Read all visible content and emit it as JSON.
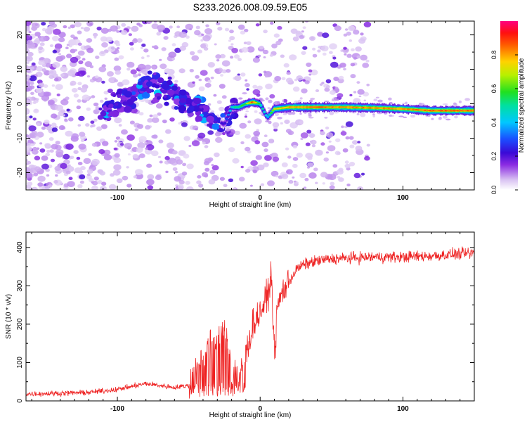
{
  "figure_title": "S233.2026.008.09.59.E05",
  "colorbar": {
    "label": "Normalized spectral amplitude",
    "ticks": [
      "0.0",
      "0.2",
      "0.4",
      "0.6",
      "0.8"
    ]
  },
  "chart_data": [
    {
      "type": "heatmap",
      "title": "S233.2026.008.09.59.E05",
      "xlabel": "Height of straight line (km)",
      "ylabel": "Frequency (Hz)",
      "xlim": [
        -164,
        150
      ],
      "ylim": [
        -25,
        24
      ],
      "xticks": [
        -100,
        0,
        100
      ],
      "yticks": [
        -20,
        -10,
        0,
        10,
        20
      ],
      "colorbar_range": [
        0,
        1
      ],
      "ridge": {
        "description": "Doppler line of the signal",
        "x": [
          -110,
          -95,
          -85,
          -75,
          -60,
          -50,
          -40,
          -30,
          -25,
          -20,
          -15,
          -10,
          -5,
          0,
          5,
          10,
          20,
          40,
          60,
          80,
          100,
          120,
          150
        ],
        "freq": [
          -3,
          1,
          4,
          6,
          3,
          0,
          -2,
          -5,
          -6,
          -1,
          -1,
          0,
          0.5,
          0,
          -4,
          -1.5,
          -1,
          -1,
          -1,
          -1.2,
          -1.5,
          -2,
          -2
        ],
        "intensity": [
          0.15,
          0.2,
          0.2,
          0.18,
          0.2,
          0.18,
          0.18,
          0.2,
          0.25,
          0.45,
          0.55,
          0.6,
          0.9,
          0.5,
          0.4,
          0.7,
          0.8,
          0.85,
          0.8,
          0.82,
          0.8,
          0.85,
          0.85
        ]
      }
    },
    {
      "type": "line",
      "xlabel": "Height of straight line (km)",
      "ylabel": "SNR (10 * v/v)",
      "xlim": [
        -164,
        150
      ],
      "ylim": [
        0,
        440
      ],
      "xticks": [
        -100,
        0,
        100
      ],
      "yticks": [
        0,
        100,
        200,
        300,
        400
      ],
      "series": [
        {
          "name": "SNR",
          "color": "#ee2222",
          "x": [
            -164,
            -140,
            -120,
            -100,
            -80,
            -60,
            -50,
            -45,
            -40,
            -35,
            -30,
            -25,
            -20,
            -15,
            -10,
            -5,
            0,
            5,
            8,
            10,
            12,
            15,
            20,
            25,
            30,
            40,
            50,
            60,
            80,
            100,
            120,
            135,
            150
          ],
          "y": [
            18,
            20,
            22,
            30,
            45,
            35,
            40,
            90,
            120,
            150,
            160,
            170,
            120,
            60,
            120,
            200,
            230,
            270,
            330,
            110,
            240,
            280,
            310,
            340,
            355,
            365,
            370,
            372,
            375,
            375,
            378,
            382,
            385
          ]
        }
      ]
    }
  ]
}
